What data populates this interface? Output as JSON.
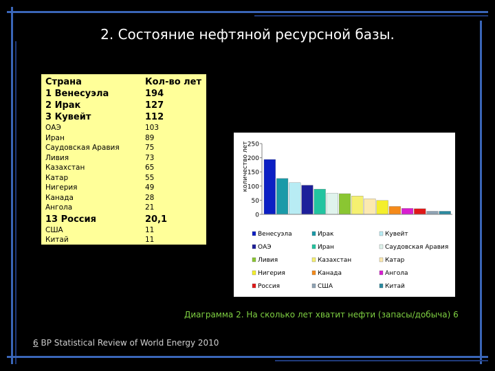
{
  "slide": {
    "title": "2. Состояние нефтяной ресурсной базы.",
    "caption": "Диаграмма 2. На сколько лет хватит нефти (запасы/добыча) 6",
    "source_note": "6",
    "source_bp": "BP",
    "source_text": " Statistical Review of World Energy 2010"
  },
  "table": {
    "header": [
      "Страна",
      "Кол-во лет"
    ],
    "rows": [
      {
        "country": "1 Венесуэла",
        "years": "194",
        "style": "big"
      },
      {
        "country": "2 Ирак",
        "years": "127",
        "style": "big"
      },
      {
        "country": "3 Кувейт",
        "years": "112",
        "style": "big"
      },
      {
        "country": "ОАЭ",
        "years": "103",
        "style": "small"
      },
      {
        "country": "Иран",
        "years": "89",
        "style": "small"
      },
      {
        "country": "Саудовская Аравия",
        "years": "75",
        "style": "small"
      },
      {
        "country": "Ливия",
        "years": "73",
        "style": "small"
      },
      {
        "country": "Казахстан",
        "years": "65",
        "style": "small"
      },
      {
        "country": "Катар",
        "years": "55",
        "style": "small"
      },
      {
        "country": "Нигерия",
        "years": "49",
        "style": "small"
      },
      {
        "country": "Канада",
        "years": "28",
        "style": "small"
      },
      {
        "country": "Ангола",
        "years": "21",
        "style": "small"
      },
      {
        "country": "13 Россия",
        "years": "20,1",
        "style": "big"
      },
      {
        "country": "США",
        "years": "11",
        "style": "small"
      },
      {
        "country": "Китай",
        "years": "11",
        "style": "small"
      }
    ]
  },
  "chart_data": {
    "type": "bar",
    "ylabel": "количество лет",
    "ylim": [
      0,
      250
    ],
    "yticks": [
      "0",
      "50",
      "100",
      "150",
      "200",
      "250"
    ],
    "grid": false,
    "legend_position": "bottom",
    "series": [
      {
        "name": "Венесуэла",
        "value": 194,
        "color": "#0b1fc4"
      },
      {
        "name": "Ирак",
        "value": 127,
        "color": "#1a9aa8"
      },
      {
        "name": "Кувейт",
        "value": 112,
        "color": "#b8ecf4"
      },
      {
        "name": "ОАЭ",
        "value": 103,
        "color": "#1d1f9a"
      },
      {
        "name": "Иран",
        "value": 89,
        "color": "#22c4a0"
      },
      {
        "name": "Саудовская Аравия",
        "value": 75,
        "color": "#dff3ec"
      },
      {
        "name": "Ливия",
        "value": 73,
        "color": "#8ac632"
      },
      {
        "name": "Казахстан",
        "value": 65,
        "color": "#f5f070"
      },
      {
        "name": "Катар",
        "value": 55,
        "color": "#fce9b0"
      },
      {
        "name": "Нигерия",
        "value": 49,
        "color": "#f4ef2c"
      },
      {
        "name": "Канада",
        "value": 28,
        "color": "#f58a1a"
      },
      {
        "name": "Ангола",
        "value": 21,
        "color": "#d81ed0"
      },
      {
        "name": "Россия",
        "value": 20.1,
        "color": "#e01818"
      },
      {
        "name": "США",
        "value": 11,
        "color": "#8fa3b4"
      },
      {
        "name": "Китай",
        "value": 11,
        "color": "#2a8aa0"
      }
    ]
  }
}
